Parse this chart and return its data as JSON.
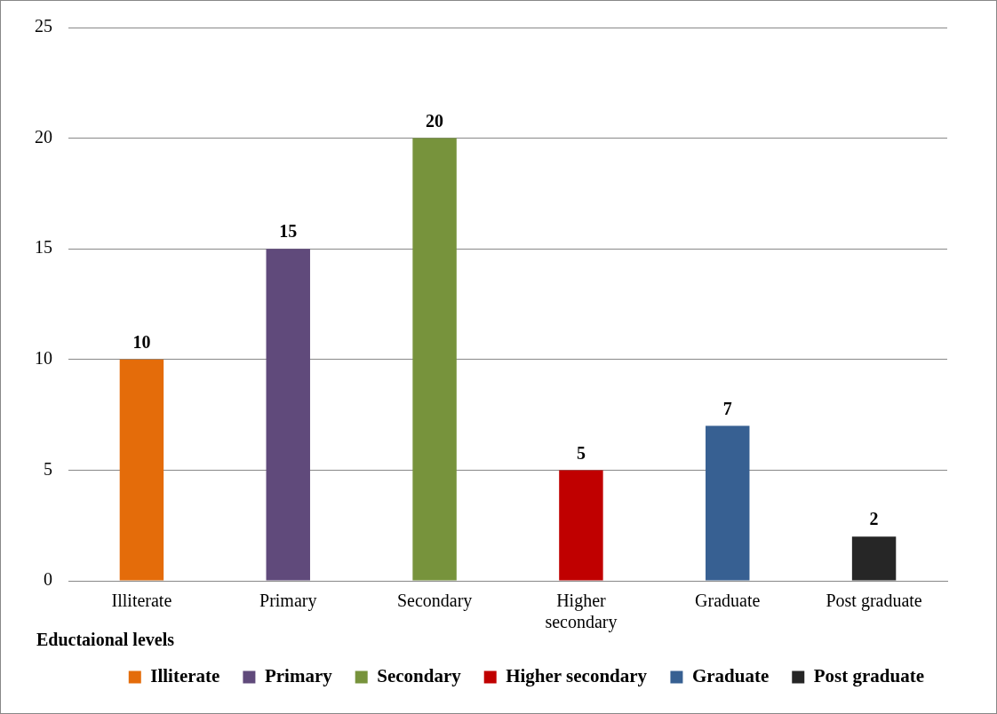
{
  "chart_data": {
    "type": "bar",
    "annotations": [
      "Eductaional levels"
    ],
    "categories": [
      "Illiterate",
      "Primary",
      "Secondary",
      "Higher secondary",
      "Graduate",
      "Post graduate"
    ],
    "series": [
      {
        "name": "Illiterate",
        "color": "#e46c0a",
        "values": [
          10,
          null,
          null,
          null,
          null,
          null
        ]
      },
      {
        "name": "Primary",
        "color": "#604a7b",
        "values": [
          null,
          15,
          null,
          null,
          null,
          null
        ]
      },
      {
        "name": "Secondary",
        "color": "#77933c",
        "values": [
          null,
          null,
          20,
          null,
          null,
          null
        ]
      },
      {
        "name": "Higher secondary",
        "color": "#c00000",
        "values": [
          null,
          null,
          null,
          5,
          null,
          null
        ]
      },
      {
        "name": "Graduate",
        "color": "#376092",
        "values": [
          null,
          null,
          null,
          null,
          7,
          null
        ]
      },
      {
        "name": "Post graduate",
        "color": "#262626",
        "values": [
          null,
          null,
          null,
          null,
          null,
          2
        ]
      }
    ],
    "ylim": [
      0,
      25
    ],
    "yticks": [
      0,
      5,
      10,
      15,
      20,
      25
    ],
    "grid": "y",
    "legend": "bottom",
    "data_labels": true
  }
}
